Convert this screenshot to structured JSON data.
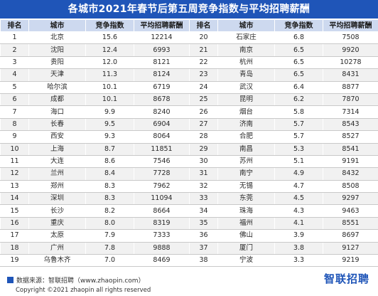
{
  "title": "各城市2021年春节后第五周竞争指数与平均招聘薪酬",
  "table": {
    "headers": [
      "排名",
      "城市",
      "竞争指数",
      "平均招聘薪酬",
      "排名",
      "城市",
      "竞争指数",
      "平均招聘薪酬"
    ],
    "rows": [
      [
        "1",
        "北京",
        "15.6",
        "12214",
        "20",
        "石家庄",
        "6.8",
        "7508"
      ],
      [
        "2",
        "沈阳",
        "12.4",
        "6993",
        "21",
        "南京",
        "6.5",
        "9920"
      ],
      [
        "3",
        "贵阳",
        "12.0",
        "8121",
        "22",
        "杭州",
        "6.5",
        "10278"
      ],
      [
        "4",
        "天津",
        "11.3",
        "8124",
        "23",
        "青岛",
        "6.5",
        "8431"
      ],
      [
        "5",
        "哈尔滨",
        "10.1",
        "6719",
        "24",
        "武汉",
        "6.4",
        "8877"
      ],
      [
        "6",
        "成都",
        "10.1",
        "8678",
        "25",
        "昆明",
        "6.2",
        "7870"
      ],
      [
        "7",
        "海口",
        "9.9",
        "8240",
        "26",
        "烟台",
        "5.8",
        "7314"
      ],
      [
        "8",
        "长春",
        "9.5",
        "6904",
        "27",
        "济南",
        "5.7",
        "8543"
      ],
      [
        "9",
        "西安",
        "9.3",
        "8064",
        "28",
        "合肥",
        "5.7",
        "8527"
      ],
      [
        "10",
        "上海",
        "8.7",
        "11851",
        "29",
        "南昌",
        "5.3",
        "8541"
      ],
      [
        "11",
        "大连",
        "8.6",
        "7546",
        "30",
        "苏州",
        "5.1",
        "9191"
      ],
      [
        "12",
        "兰州",
        "8.4",
        "7728",
        "31",
        "南宁",
        "4.9",
        "8432"
      ],
      [
        "13",
        "郑州",
        "8.3",
        "7962",
        "32",
        "无锡",
        "4.7",
        "8508"
      ],
      [
        "14",
        "深圳",
        "8.3",
        "11094",
        "33",
        "东莞",
        "4.5",
        "9297"
      ],
      [
        "15",
        "长沙",
        "8.2",
        "8664",
        "34",
        "珠海",
        "4.3",
        "9463"
      ],
      [
        "16",
        "重庆",
        "8.0",
        "8319",
        "35",
        "福州",
        "4.1",
        "8551"
      ],
      [
        "17",
        "太原",
        "7.9",
        "7333",
        "36",
        "佛山",
        "3.9",
        "8697"
      ],
      [
        "18",
        "广州",
        "7.8",
        "9888",
        "37",
        "厦门",
        "3.8",
        "9127"
      ],
      [
        "19",
        "乌鲁木齐",
        "7.0",
        "8469",
        "38",
        "宁波",
        "3.3",
        "9219"
      ]
    ]
  },
  "chart_data": {
    "type": "table",
    "title": "各城市2021年春节后第五周竞争指数与平均招聘薪酬",
    "columns": [
      "排名",
      "城市",
      "竞争指数",
      "平均招聘薪酬"
    ],
    "records": [
      [
        1,
        "北京",
        15.6,
        12214
      ],
      [
        2,
        "沈阳",
        12.4,
        6993
      ],
      [
        3,
        "贵阳",
        12.0,
        8121
      ],
      [
        4,
        "天津",
        11.3,
        8124
      ],
      [
        5,
        "哈尔滨",
        10.1,
        6719
      ],
      [
        6,
        "成都",
        10.1,
        8678
      ],
      [
        7,
        "海口",
        9.9,
        8240
      ],
      [
        8,
        "长春",
        9.5,
        6904
      ],
      [
        9,
        "西安",
        9.3,
        8064
      ],
      [
        10,
        "上海",
        8.7,
        11851
      ],
      [
        11,
        "大连",
        8.6,
        7546
      ],
      [
        12,
        "兰州",
        8.4,
        7728
      ],
      [
        13,
        "郑州",
        8.3,
        7962
      ],
      [
        14,
        "深圳",
        8.3,
        11094
      ],
      [
        15,
        "长沙",
        8.2,
        8664
      ],
      [
        16,
        "重庆",
        8.0,
        8319
      ],
      [
        17,
        "太原",
        7.9,
        7333
      ],
      [
        18,
        "广州",
        7.8,
        9888
      ],
      [
        19,
        "乌鲁木齐",
        7.0,
        8469
      ],
      [
        20,
        "石家庄",
        6.8,
        7508
      ],
      [
        21,
        "南京",
        6.5,
        9920
      ],
      [
        22,
        "杭州",
        6.5,
        10278
      ],
      [
        23,
        "青岛",
        6.5,
        8431
      ],
      [
        24,
        "武汉",
        6.4,
        8877
      ],
      [
        25,
        "昆明",
        6.2,
        7870
      ],
      [
        26,
        "烟台",
        5.8,
        7314
      ],
      [
        27,
        "济南",
        5.7,
        8543
      ],
      [
        28,
        "合肥",
        5.7,
        8527
      ],
      [
        29,
        "南昌",
        5.3,
        8541
      ],
      [
        30,
        "苏州",
        5.1,
        9191
      ],
      [
        31,
        "南宁",
        4.9,
        8432
      ],
      [
        32,
        "无锡",
        4.7,
        8508
      ],
      [
        33,
        "东莞",
        4.5,
        9297
      ],
      [
        34,
        "珠海",
        4.3,
        9463
      ],
      [
        35,
        "福州",
        4.1,
        8551
      ],
      [
        36,
        "佛山",
        3.9,
        8697
      ],
      [
        37,
        "厦门",
        3.8,
        9127
      ],
      [
        38,
        "宁波",
        3.3,
        9219
      ]
    ]
  },
  "footer": {
    "source": "数据来源：智联招聘（www.zhaopin.com）",
    "copyright": "Copyright ©2021 zhaopin all rights reserved",
    "brand": "智联招聘"
  },
  "colors": {
    "title_bg": "#1f55b8",
    "header_bg": "#cdd9ef",
    "stripe_bg": "#f1f1f1",
    "brand": "#1f55b8"
  },
  "icons": {
    "source_marker": "blue-square-icon",
    "brand_logo": "zhaopin-logo"
  }
}
